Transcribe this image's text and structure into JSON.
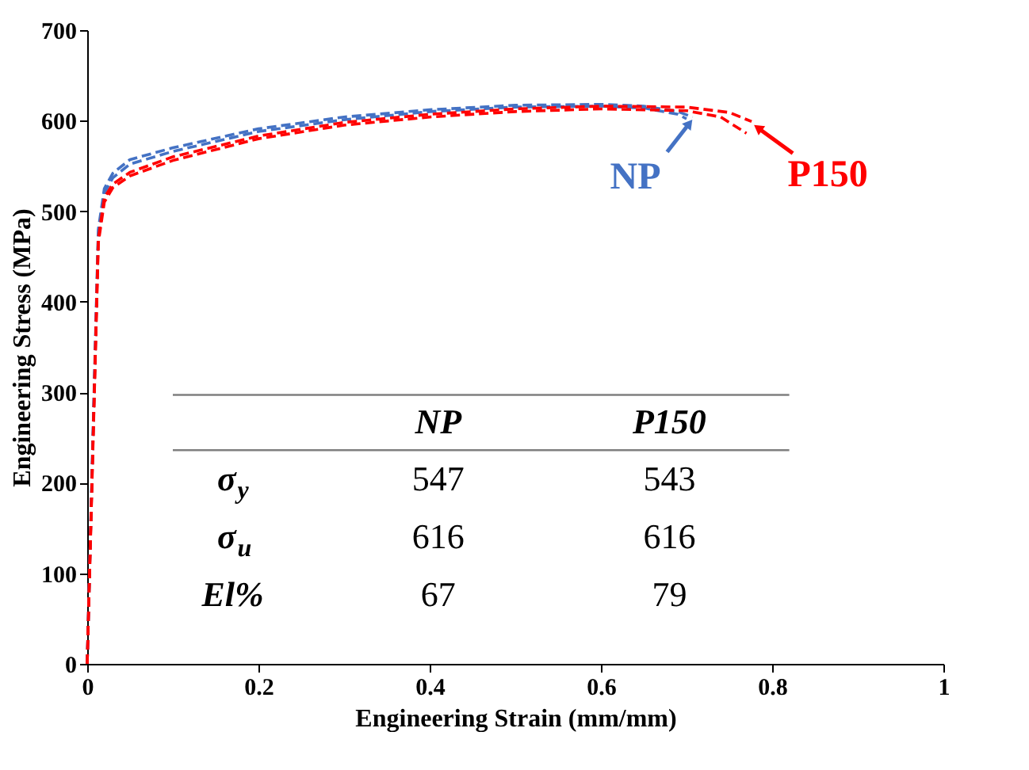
{
  "chart_data": {
    "type": "line",
    "xlabel": "Engineering Strain (mm/mm)",
    "ylabel": "Engineering Stress (MPa)",
    "xlim": [
      0,
      1
    ],
    "xticks": [
      0,
      0.2,
      0.4,
      0.6,
      0.8,
      1
    ],
    "ylim": [
      0,
      700
    ],
    "yticks": [
      0,
      100,
      200,
      300,
      400,
      500,
      600,
      700
    ],
    "marker": "none",
    "line_style": "dashed",
    "legend": "right",
    "series": [
      {
        "name": "NP",
        "color": "#4472c4",
        "x": [
          0,
          0.008,
          0.013,
          0.02,
          0.03,
          0.05,
          0.1,
          0.2,
          0.3,
          0.4,
          0.5,
          0.6,
          0.65,
          0.69,
          0.707
        ],
        "values": [
          0,
          300,
          480,
          525,
          542,
          557,
          570,
          591,
          604,
          612,
          617,
          618,
          616,
          610,
          604
        ]
      },
      {
        "color": "#4472c4",
        "x": [
          0,
          0.008,
          0.013,
          0.02,
          0.03,
          0.05,
          0.1,
          0.2,
          0.3,
          0.4,
          0.5,
          0.6,
          0.65,
          0.69,
          0.7
        ],
        "values": [
          0,
          295,
          475,
          520,
          537,
          552,
          566,
          588,
          601,
          610,
          615,
          616,
          614,
          607,
          602
        ]
      },
      {
        "name": "P150",
        "color": "#ff0000",
        "x": [
          0,
          0.008,
          0.013,
          0.02,
          0.03,
          0.05,
          0.1,
          0.2,
          0.3,
          0.4,
          0.5,
          0.6,
          0.7,
          0.75,
          0.776
        ],
        "values": [
          0,
          290,
          470,
          515,
          530,
          543,
          560,
          583,
          598,
          607,
          613,
          616,
          615,
          609,
          599
        ]
      },
      {
        "color": "#ff0000",
        "x": [
          0,
          0.008,
          0.013,
          0.02,
          0.03,
          0.05,
          0.1,
          0.2,
          0.3,
          0.4,
          0.5,
          0.6,
          0.7,
          0.74,
          0.77
        ],
        "values": [
          0,
          285,
          465,
          510,
          526,
          539,
          556,
          580,
          595,
          604,
          610,
          613,
          611,
          604,
          586
        ]
      }
    ],
    "annotations": [
      "NP",
      "P150",
      "σ$_{y}$",
      "547",
      "543",
      "σ$_{u}$",
      "616",
      "616",
      "El%",
      "67",
      "79"
    ]
  }
}
